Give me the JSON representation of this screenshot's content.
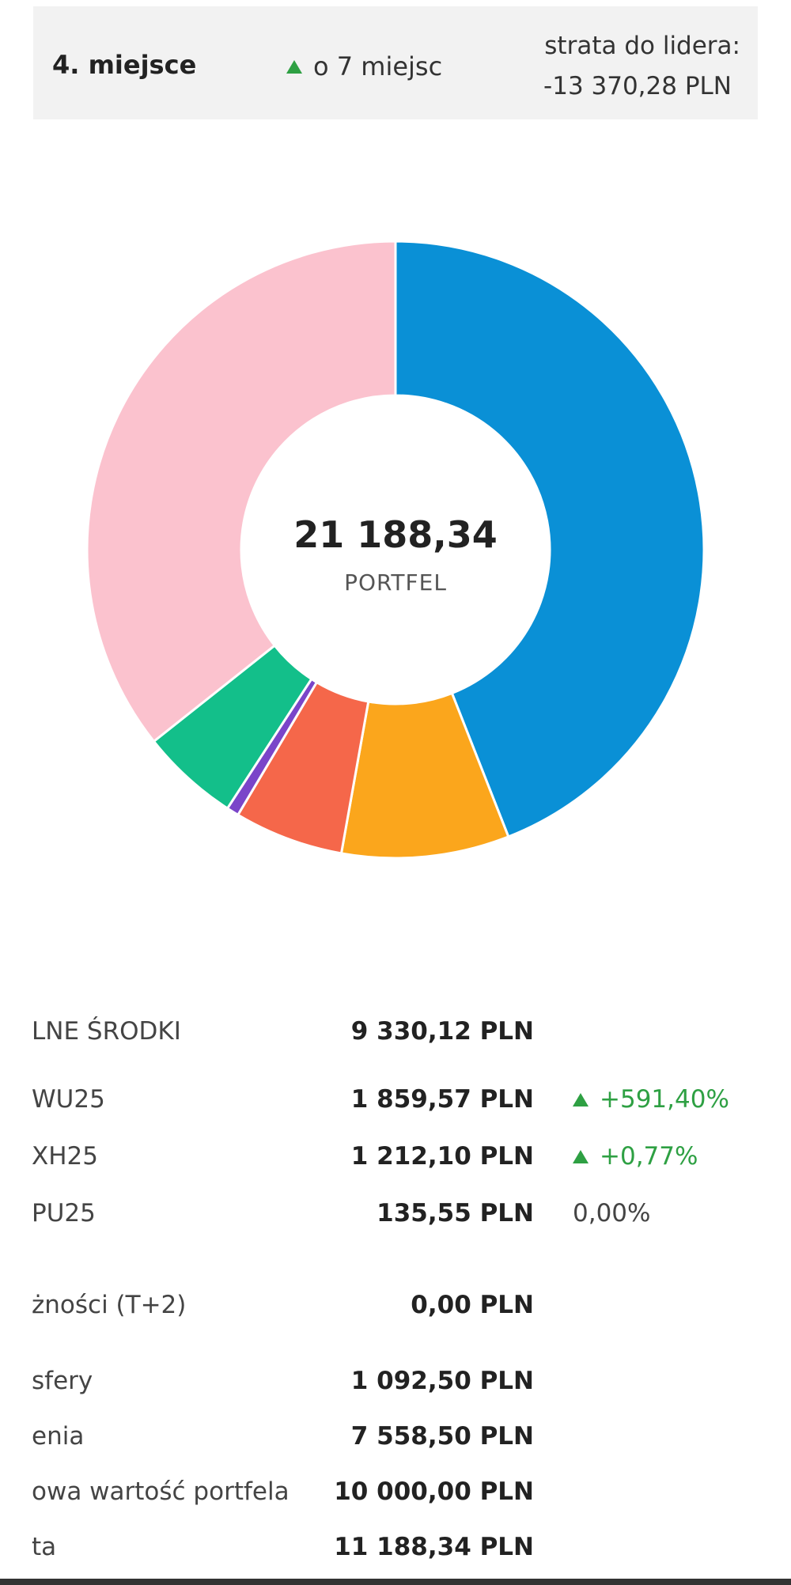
{
  "banner": {
    "place": "4. miejsce",
    "change_text": "o 7 miejsc",
    "loss_label": "strata do lidera:",
    "loss_value": "-13 370,28 PLN"
  },
  "chart_data": {
    "type": "pie",
    "center_value": "21 188,34",
    "center_label": "PORTFEL",
    "slices": [
      {
        "value": 9330.12,
        "color": "#0a90d6"
      },
      {
        "value": 1859.57,
        "color": "#fba61c"
      },
      {
        "value": 1212.1,
        "color": "#f5674a"
      },
      {
        "value": 135.55,
        "color": "#7a45c9"
      },
      {
        "value": 1092.5,
        "color": "#13bf8a"
      },
      {
        "value": 7558.5,
        "color": "#fbc2ce"
      }
    ]
  },
  "holdings": [
    {
      "label": "LNE ŚRODKI",
      "value": "9 330,12 PLN",
      "change": ""
    },
    {
      "label": "WU25",
      "value": "1 859,57 PLN",
      "change": "+591,40%",
      "dir": "up"
    },
    {
      "label": "XH25",
      "value": "1 212,10 PLN",
      "change": "+0,77%",
      "dir": "up"
    },
    {
      "label": "PU25",
      "value": "135,55 PLN",
      "change": "0,00%",
      "dir": "none"
    }
  ],
  "summary": [
    {
      "label": "żności (T+2)",
      "value": "0,00 PLN"
    },
    {
      "label": "sfery",
      "value": "1 092,50 PLN"
    },
    {
      "label": "enia",
      "value": "7 558,50 PLN"
    },
    {
      "label": "owa wartość portfela",
      "value": "10 000,00 PLN"
    },
    {
      "label": "ta",
      "value": "11 188,34 PLN"
    }
  ],
  "colors": {
    "positive": "#2ea043",
    "banner_bg": "#f2f2f2"
  }
}
